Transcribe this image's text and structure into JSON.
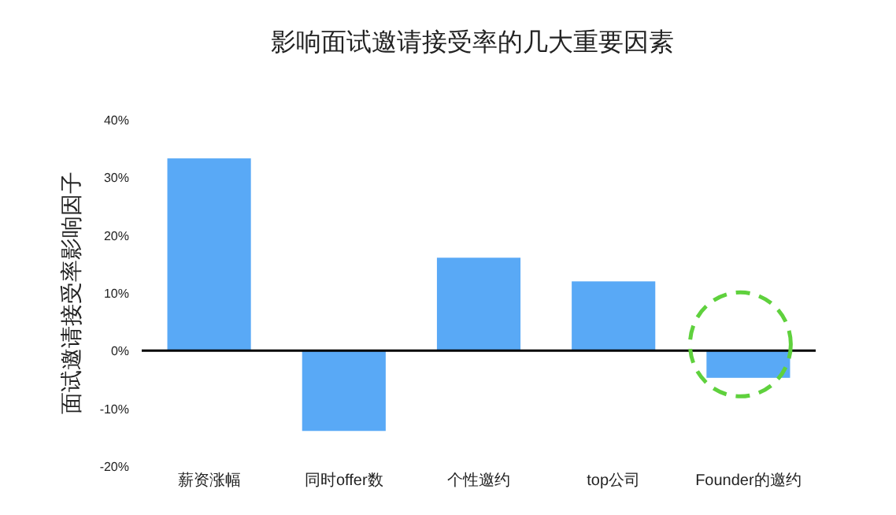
{
  "chart_data": {
    "type": "bar",
    "title": "影响面试邀请接受率的几大重要因素",
    "ylabel": "面试邀请接受率影响因子",
    "categories": [
      "薪资涨幅",
      "同时offer数",
      "个性邀约",
      "top公司",
      "Founder的邀约"
    ],
    "values": [
      33.3,
      -13.9,
      16.1,
      12.0,
      -4.7
    ],
    "color": "#59a9f6",
    "ylim": [
      -20,
      40
    ],
    "yticks": [
      {
        "value": -20,
        "label": "-20%"
      },
      {
        "value": -10,
        "label": "-10%"
      },
      {
        "value": 0,
        "label": "0%"
      },
      {
        "value": 10,
        "label": "10%"
      },
      {
        "value": 20,
        "label": "20%"
      },
      {
        "value": 30,
        "label": "30%"
      },
      {
        "value": 40,
        "label": "40%"
      }
    ],
    "ref_lines": [
      {
        "axis": "y",
        "value": 0,
        "color": "#000000"
      }
    ],
    "grid": false
  }
}
